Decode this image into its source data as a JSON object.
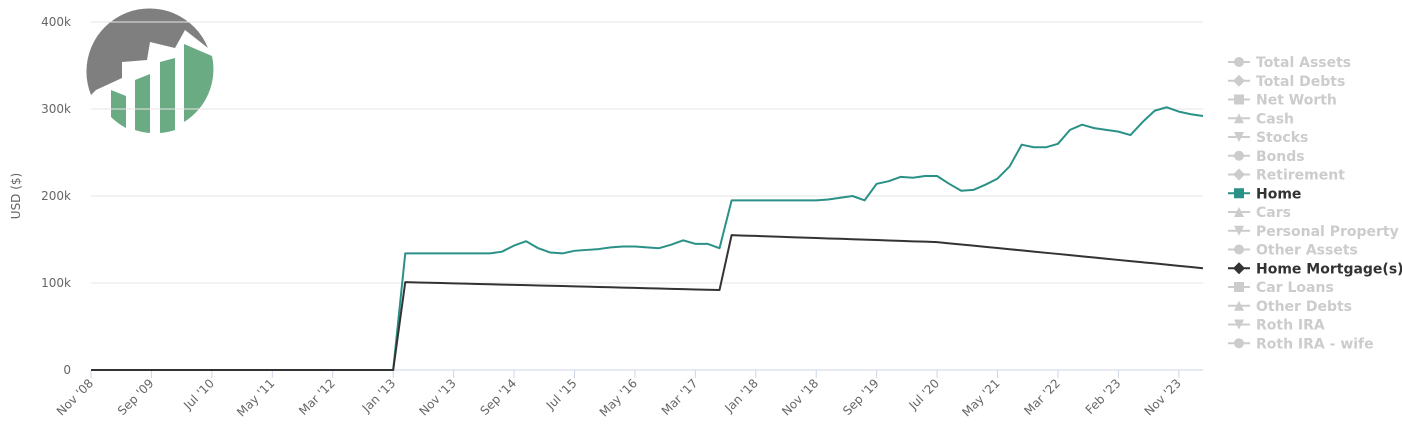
{
  "chart_data": {
    "type": "line",
    "y_axis_label": "USD ($)",
    "ylim": [
      0,
      400000
    ],
    "yticks": [
      {
        "value": 0,
        "label": "0"
      },
      {
        "value": 100000,
        "label": "100k"
      },
      {
        "value": 200000,
        "label": "200k"
      },
      {
        "value": 300000,
        "label": "300k"
      },
      {
        "value": 400000,
        "label": "400k"
      }
    ],
    "grid": true,
    "legend_position": "right",
    "categories": [
      "Nov '08",
      null,
      null,
      null,
      null,
      "Sep '09",
      null,
      null,
      null,
      null,
      "Jul '10",
      null,
      null,
      null,
      null,
      "May '11",
      null,
      null,
      null,
      null,
      "Mar '12",
      null,
      null,
      null,
      null,
      "Jan '13",
      null,
      null,
      null,
      null,
      "Nov '13",
      null,
      null,
      null,
      null,
      "Sep '14",
      null,
      null,
      null,
      null,
      "Jul '15",
      null,
      null,
      null,
      null,
      "May '16",
      null,
      null,
      null,
      null,
      "Mar '17",
      null,
      null,
      null,
      null,
      "Jan '18",
      null,
      null,
      null,
      null,
      "Nov '18",
      null,
      null,
      null,
      null,
      "Sep '19",
      null,
      null,
      null,
      null,
      "Jul '20",
      null,
      null,
      null,
      null,
      "May '21",
      null,
      null,
      null,
      null,
      "Mar '22",
      null,
      null,
      null,
      null,
      "Feb '23",
      null,
      null,
      null,
      null,
      "Nov '23",
      null,
      null
    ],
    "series": [
      {
        "name": "Total Assets",
        "marker": "circle",
        "visible": false
      },
      {
        "name": "Total Debts",
        "marker": "diamond",
        "visible": false
      },
      {
        "name": "Net Worth",
        "marker": "square",
        "visible": false
      },
      {
        "name": "Cash",
        "marker": "triangle",
        "visible": false
      },
      {
        "name": "Stocks",
        "marker": "triangle-down",
        "visible": false
      },
      {
        "name": "Bonds",
        "marker": "circle",
        "visible": false
      },
      {
        "name": "Retirement",
        "marker": "diamond",
        "visible": false
      },
      {
        "name": "Home",
        "marker": "square",
        "color": "#2a9187",
        "values": [
          0,
          0,
          0,
          0,
          0,
          0,
          0,
          0,
          0,
          0,
          0,
          0,
          0,
          0,
          0,
          0,
          0,
          0,
          0,
          0,
          0,
          0,
          0,
          0,
          0,
          0,
          134000,
          134000,
          134000,
          134000,
          134000,
          134000,
          134000,
          134000,
          136000,
          143000,
          148000,
          140000,
          135000,
          134000,
          137000,
          138000,
          139000,
          141000,
          142000,
          142000,
          141000,
          140000,
          144000,
          149000,
          145000,
          145000,
          140000,
          195000,
          195000,
          195000,
          195000,
          195000,
          195000,
          195000,
          195000,
          196000,
          198000,
          200000,
          195000,
          214000,
          217000,
          222000,
          221000,
          223000,
          223000,
          214000,
          206000,
          207000,
          213000,
          220000,
          234000,
          259000,
          256000,
          256000,
          260000,
          276000,
          282000,
          278000,
          276000,
          274000,
          270000,
          285000,
          298000,
          302000,
          297000,
          294000,
          292000
        ]
      },
      {
        "name": "Cars",
        "marker": "triangle",
        "visible": false
      },
      {
        "name": "Personal Property",
        "marker": "triangle-down",
        "visible": false
      },
      {
        "name": "Other Assets",
        "marker": "circle",
        "visible": false
      },
      {
        "name": "Home Mortgage(s)",
        "marker": "diamond",
        "color": "#333333",
        "values": [
          0,
          0,
          0,
          0,
          0,
          0,
          0,
          0,
          0,
          0,
          0,
          0,
          0,
          0,
          0,
          0,
          0,
          0,
          0,
          0,
          0,
          0,
          0,
          0,
          0,
          0,
          101000,
          100600,
          100300,
          100000,
          99600,
          99300,
          98900,
          98600,
          98200,
          97900,
          97500,
          97200,
          96800,
          96500,
          96100,
          95800,
          95400,
          95100,
          94700,
          94400,
          94000,
          93700,
          93300,
          93000,
          92600,
          92300,
          92000,
          155000,
          154500,
          154100,
          153600,
          153100,
          152600,
          152200,
          151700,
          151200,
          150800,
          150300,
          149800,
          149400,
          148900,
          148400,
          147900,
          147500,
          147000,
          145600,
          144300,
          142900,
          141500,
          140200,
          138800,
          137500,
          136100,
          134700,
          133400,
          132000,
          130600,
          129300,
          127900,
          126500,
          125200,
          123800,
          122500,
          121100,
          119700,
          118400,
          117000
        ]
      },
      {
        "name": "Car Loans",
        "marker": "square",
        "visible": false
      },
      {
        "name": "Other Debts",
        "marker": "triangle",
        "visible": false
      },
      {
        "name": "Roth IRA",
        "marker": "triangle-down",
        "visible": false
      },
      {
        "name": "Roth IRA - wife",
        "marker": "circle",
        "visible": false
      }
    ]
  }
}
